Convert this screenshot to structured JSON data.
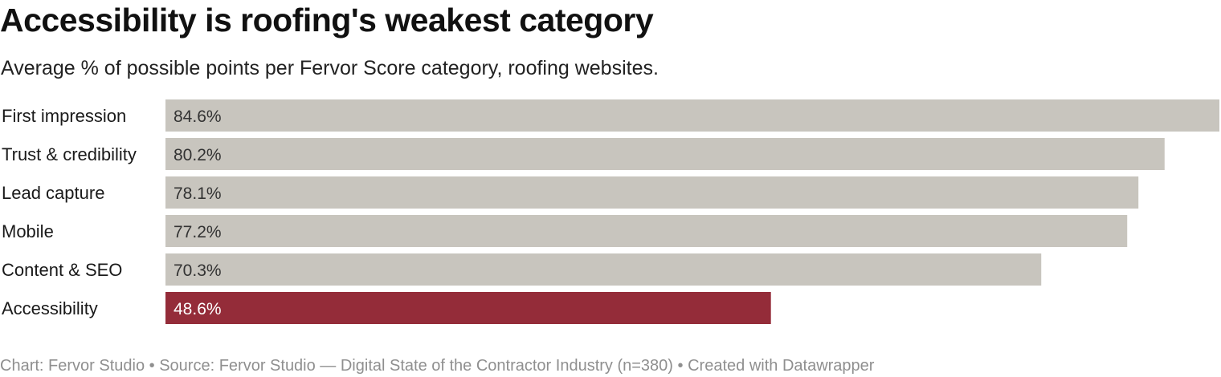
{
  "chart_data": {
    "type": "bar",
    "orientation": "horizontal",
    "title": "Accessibility is roofing's weakest category",
    "subtitle": "Average % of possible points per Fervor Score category, roofing websites.",
    "categories": [
      "First impression",
      "Trust & credibility",
      "Lead capture",
      "Mobile",
      "Content & SEO",
      "Accessibility"
    ],
    "values": [
      84.6,
      80.2,
      78.1,
      77.2,
      70.3,
      48.6
    ],
    "value_labels": [
      "84.6%",
      "80.2%",
      "78.1%",
      "77.2%",
      "70.3%",
      "48.6%"
    ],
    "highlight_category": "Accessibility",
    "xlim": [
      0,
      84.6
    ],
    "grid": false,
    "legend": "none",
    "colors": {
      "bar": "#c8c5be",
      "highlight": "#942c39",
      "label_on_bar": "#333333",
      "label_on_highlight": "#ffffff"
    }
  },
  "footer": {
    "credit": "Chart: Fervor Studio",
    "source": "Source: Fervor Studio — Digital State of the Contractor Industry (n=380)",
    "tool": "Created with Datawrapper",
    "separator": "•"
  }
}
